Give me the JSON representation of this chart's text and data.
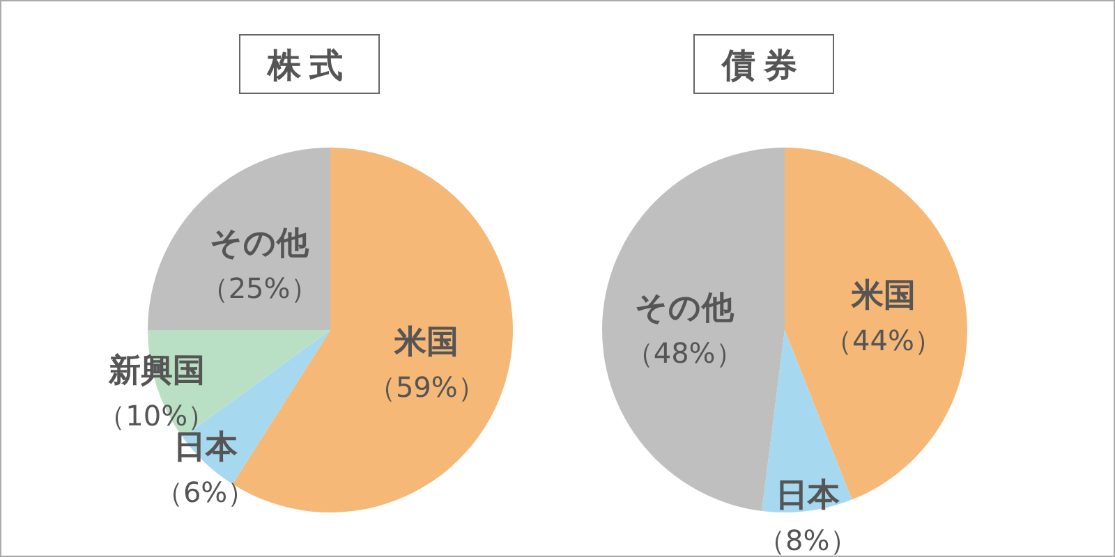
{
  "chart_data": [
    {
      "type": "pie",
      "title": "株式",
      "categories": [
        "米国",
        "日本",
        "新興国",
        "その他"
      ],
      "values": [
        59,
        6,
        10,
        25
      ],
      "value_labels": [
        "（59%）",
        "（6%）",
        "（10%）",
        "（25%）"
      ],
      "colors": [
        "#f5b877",
        "#a6d8ef",
        "#b9e0c4",
        "#bfbfbf"
      ]
    },
    {
      "type": "pie",
      "title": "債券",
      "categories": [
        "米国",
        "日本",
        "その他"
      ],
      "values": [
        44,
        8,
        48
      ],
      "value_labels": [
        "（44%）",
        "（8%）",
        "（48%）"
      ],
      "colors": [
        "#f5b877",
        "#a6d8ef",
        "#bfbfbf"
      ]
    }
  ]
}
